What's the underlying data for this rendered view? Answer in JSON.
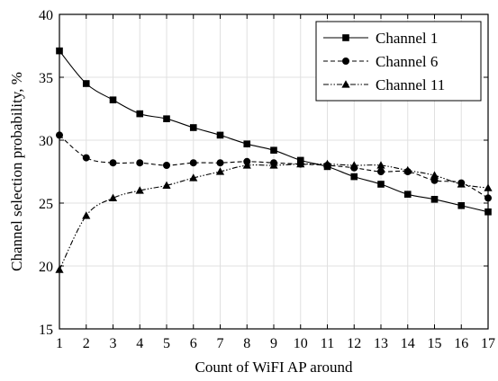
{
  "chart_data": {
    "type": "line",
    "title": "",
    "xlabel": "Count of WiFI AP around",
    "ylabel": "Channel selection probability, %",
    "xlim": [
      1,
      17
    ],
    "ylim": [
      15,
      40
    ],
    "x_ticks": [
      1,
      2,
      3,
      4,
      5,
      6,
      7,
      8,
      9,
      10,
      11,
      12,
      13,
      14,
      15,
      16,
      17
    ],
    "y_ticks": [
      15,
      20,
      25,
      30,
      35,
      40
    ],
    "grid": true,
    "legend_position": "top-right",
    "x": [
      1,
      2,
      3,
      4,
      5,
      6,
      7,
      8,
      9,
      10,
      11,
      12,
      13,
      14,
      15,
      16,
      17
    ],
    "series": [
      {
        "name": "Channel 1",
        "marker": "square",
        "line_style": "solid",
        "values": [
          37.1,
          34.5,
          33.2,
          32.1,
          31.7,
          31.0,
          30.4,
          29.7,
          29.2,
          28.4,
          27.9,
          27.1,
          26.5,
          25.7,
          25.3,
          24.8,
          24.3
        ]
      },
      {
        "name": "Channel 6",
        "marker": "circle",
        "line_style": "dashed",
        "values": [
          30.4,
          28.6,
          28.2,
          28.2,
          28.0,
          28.2,
          28.2,
          28.3,
          28.2,
          28.1,
          28.0,
          27.8,
          27.5,
          27.5,
          26.8,
          26.6,
          25.4
        ]
      },
      {
        "name": "Channel 11",
        "marker": "triangle",
        "line_style": "dash-dot-dot",
        "values": [
          19.7,
          24.0,
          25.4,
          26.0,
          26.4,
          27.0,
          27.5,
          28.0,
          28.0,
          28.1,
          28.1,
          28.0,
          28.0,
          27.6,
          27.2,
          26.5,
          26.2
        ]
      }
    ]
  }
}
